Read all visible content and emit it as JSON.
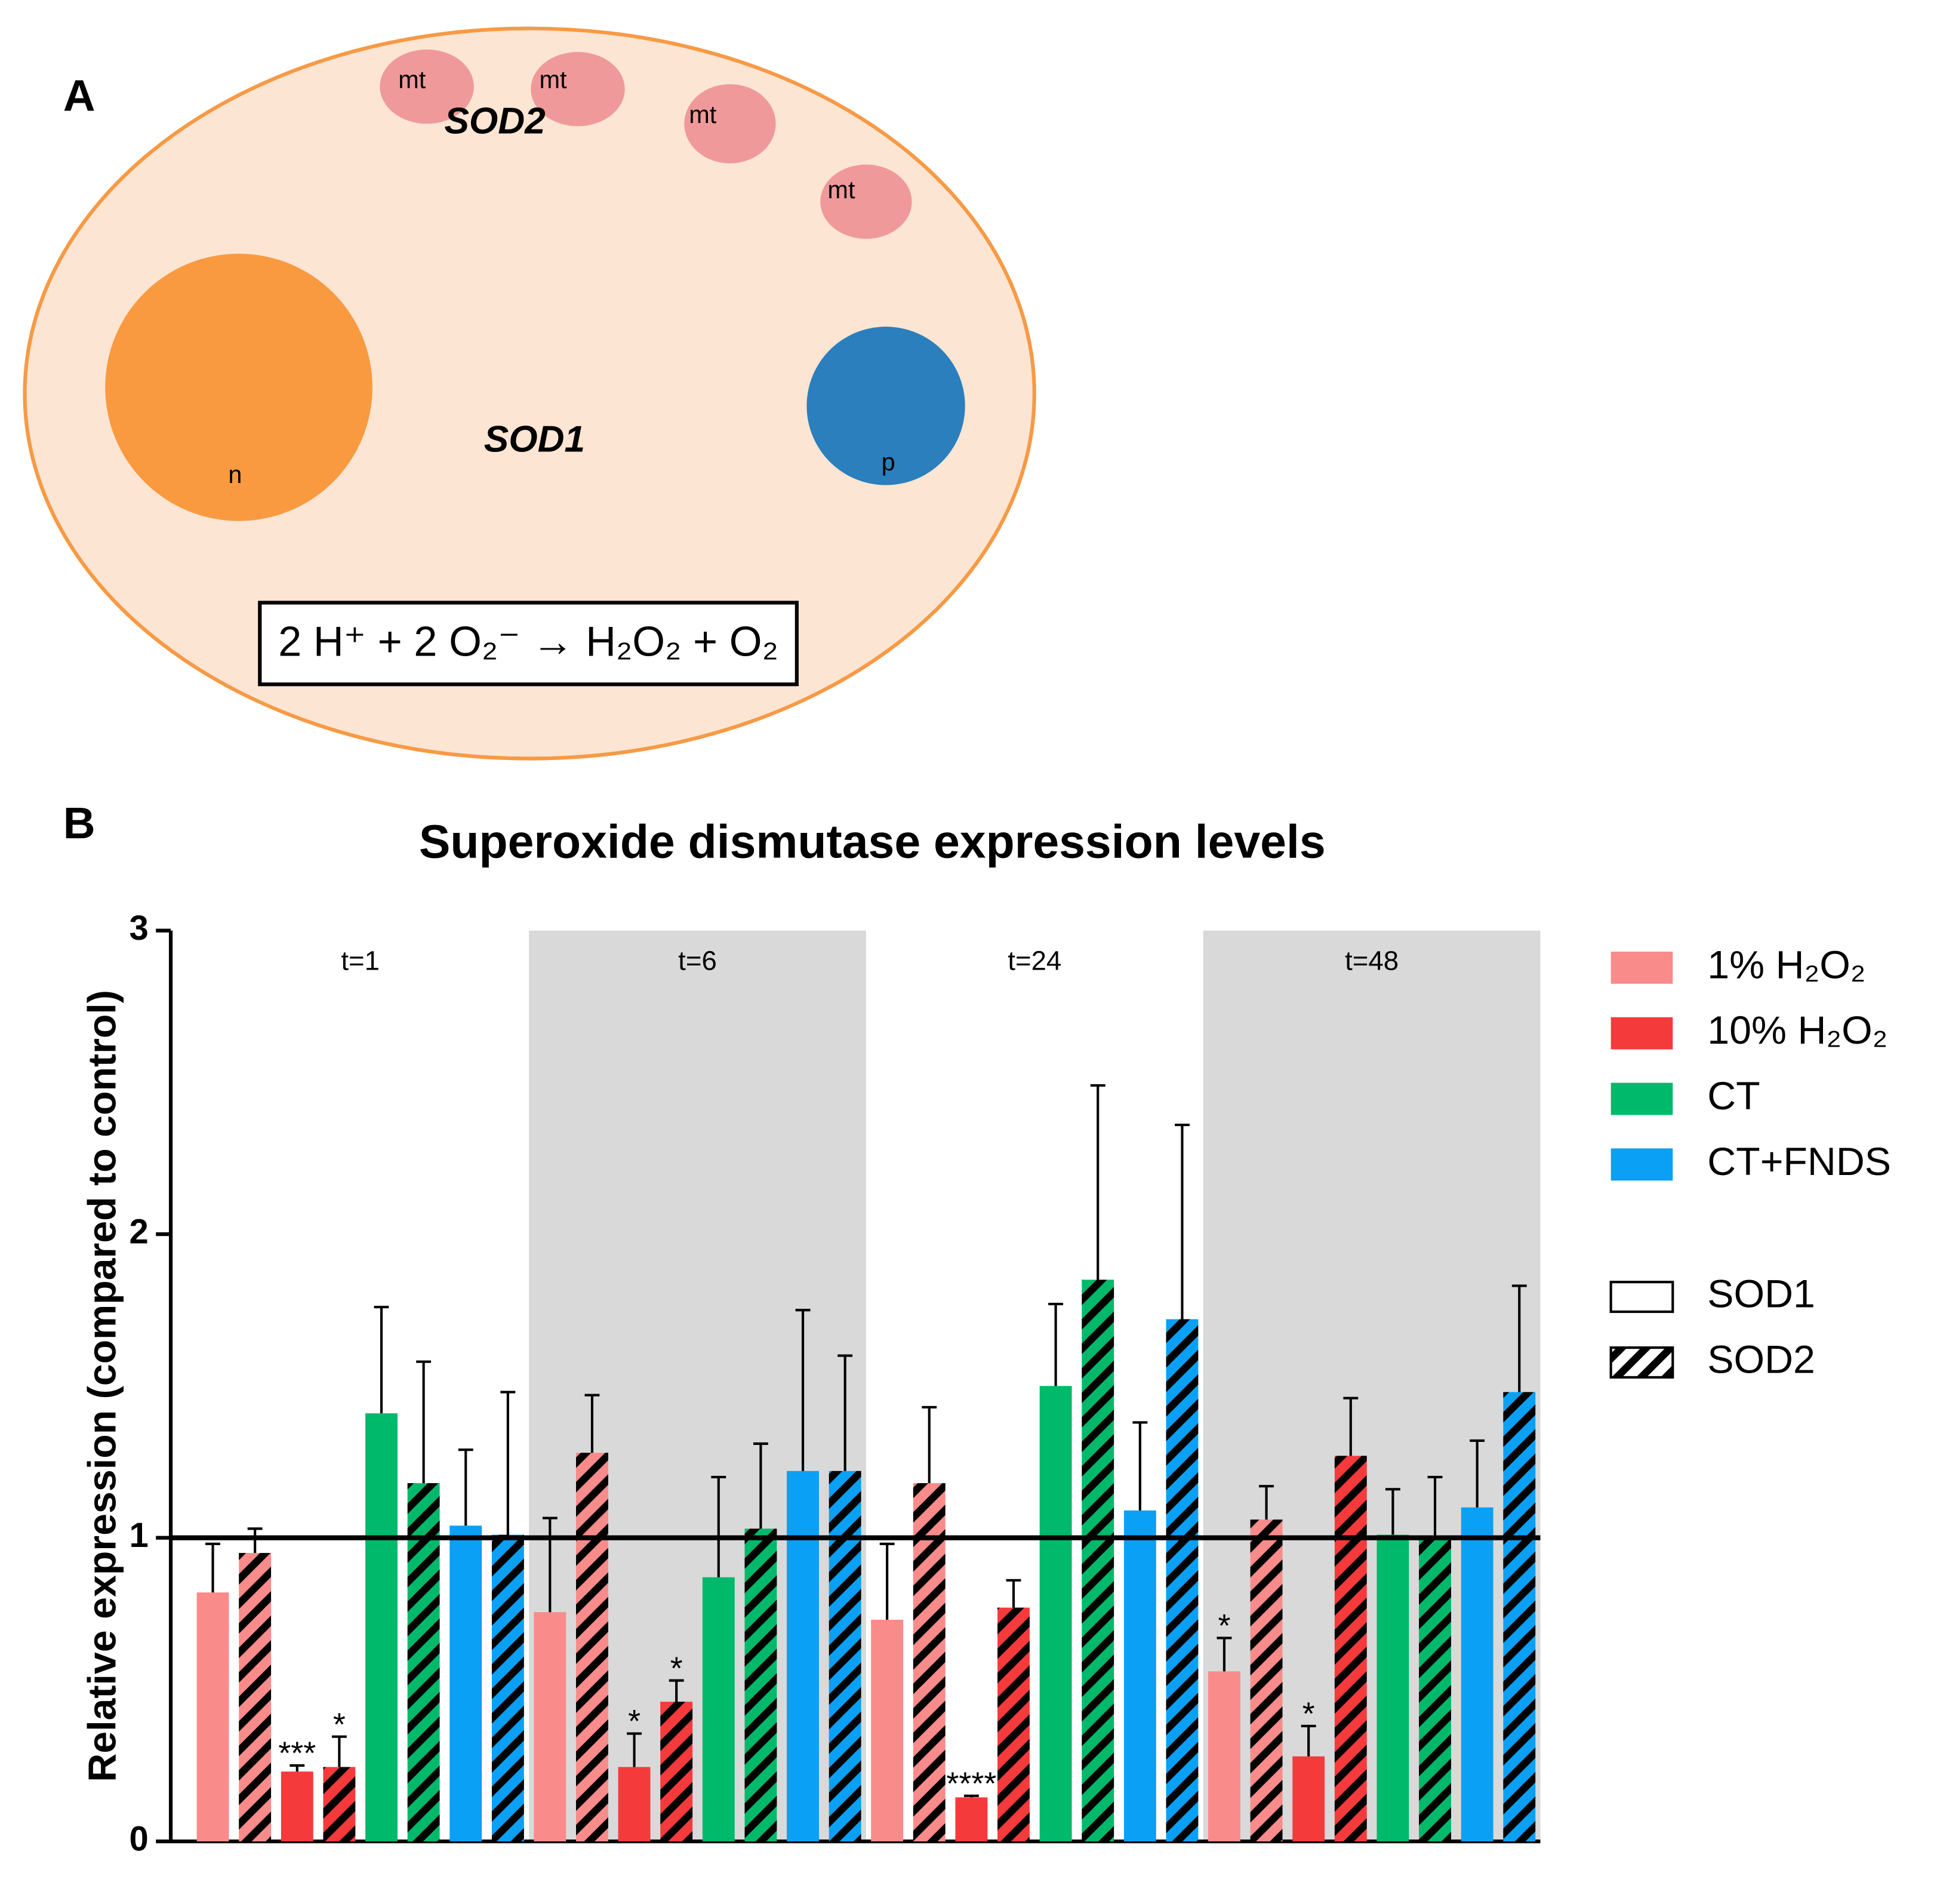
{
  "diagram": {
    "label": "A",
    "mitochondria": [
      "mt",
      "mt",
      "mt",
      "mt"
    ],
    "sod2": "SOD2",
    "sod1": "SOD1",
    "nucleus": "n",
    "peroxisome": "p",
    "equation": "2 H⁺ + 2 O₂⁻ → H₂O₂ + O₂"
  },
  "chart_data": {
    "panel_label": "B",
    "type": "bar",
    "title": "Superoxide dismutase expression levels",
    "ylabel": "Relative expression (compared to control)",
    "ylim": [
      0,
      3
    ],
    "yticks": [
      0,
      1,
      2,
      3
    ],
    "reference_line": 1,
    "groups": [
      "t=1",
      "t=6",
      "t=24",
      "t=48"
    ],
    "shaded": [
      false,
      true,
      false,
      true
    ],
    "genes": [
      {
        "name": "SOD1",
        "pattern": "solid"
      },
      {
        "name": "SOD2",
        "pattern": "hatched"
      }
    ],
    "series": [
      {
        "name": "1% H₂O₂",
        "color": "#f98b8b",
        "values": [
          [
            0.82,
            0.95
          ],
          [
            0.755,
            1.28
          ],
          [
            0.73,
            1.18
          ],
          [
            0.56,
            1.06
          ]
        ],
        "errors": [
          [
            0.16,
            0.08
          ],
          [
            0.31,
            0.19
          ],
          [
            0.25,
            0.25
          ],
          [
            0.11,
            0.11
          ]
        ],
        "significance": [
          [
            null,
            null
          ],
          [
            null,
            null
          ],
          [
            null,
            null
          ],
          [
            "*",
            null
          ]
        ]
      },
      {
        "name": "10% H₂O₂",
        "color": "#f53a3c",
        "values": [
          [
            0.23,
            0.245
          ],
          [
            0.245,
            0.46
          ],
          [
            0.145,
            0.77
          ],
          [
            0.28,
            1.27
          ]
        ],
        "errors": [
          [
            0.02,
            0.1
          ],
          [
            0.11,
            0.07
          ],
          [
            0.005,
            0.09
          ],
          [
            0.1,
            0.19
          ]
        ],
        "significance": [
          [
            "***",
            "*"
          ],
          [
            "*",
            "*"
          ],
          [
            "****",
            null
          ],
          [
            "*",
            null
          ]
        ]
      },
      {
        "name": "CT",
        "color": "#00b96b",
        "values": [
          [
            1.41,
            1.18
          ],
          [
            0.87,
            1.03
          ],
          [
            1.5,
            1.85
          ],
          [
            1.01,
            1.0
          ]
        ],
        "errors": [
          [
            0.35,
            0.4
          ],
          [
            0.33,
            0.28
          ],
          [
            0.27,
            0.64
          ],
          [
            0.15,
            0.2
          ]
        ]
      },
      {
        "name": "CT+FNDS",
        "color": "#0aa0f5",
        "values": [
          [
            1.04,
            1.01
          ],
          [
            1.22,
            1.22
          ],
          [
            1.09,
            1.72
          ],
          [
            1.1,
            1.48
          ]
        ],
        "errors": [
          [
            0.25,
            0.47
          ],
          [
            0.53,
            0.38
          ],
          [
            0.29,
            0.64
          ],
          [
            0.22,
            0.35
          ]
        ]
      }
    ]
  }
}
